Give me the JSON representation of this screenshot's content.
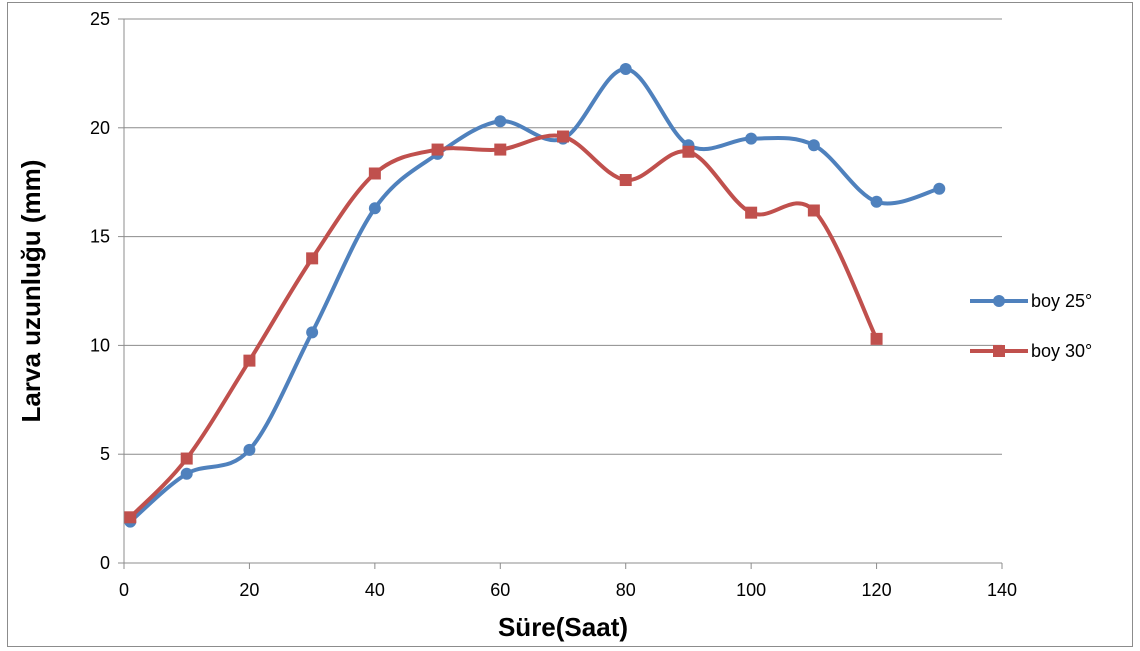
{
  "chart_data": {
    "type": "line",
    "title": "",
    "xlabel": "Süre(Saat)",
    "ylabel": "Larva uzunluğu (mm)",
    "xlim": [
      0,
      140
    ],
    "ylim": [
      0,
      25
    ],
    "x_ticks": [
      0,
      20,
      40,
      60,
      80,
      100,
      120,
      140
    ],
    "y_ticks": [
      0,
      5,
      10,
      15,
      20,
      25
    ],
    "x_tick_labels": [
      "0",
      "20",
      "40",
      "60",
      "80",
      "100",
      "120",
      "140"
    ],
    "y_tick_labels": [
      "0",
      "5",
      "10",
      "15",
      "20",
      "25"
    ],
    "grid": "horizontal",
    "smooth": true,
    "legend_position": "right",
    "series": [
      {
        "name": "boy 25°",
        "color": "#4f81bd",
        "marker": "circle",
        "points": [
          [
            1,
            1.9
          ],
          [
            10,
            4.1
          ],
          [
            20,
            5.2
          ],
          [
            30,
            10.6
          ],
          [
            40,
            16.3
          ],
          [
            50,
            18.8
          ],
          [
            60,
            20.3
          ],
          [
            70,
            19.5
          ],
          [
            80,
            22.7
          ],
          [
            90,
            19.2
          ],
          [
            100,
            19.5
          ],
          [
            110,
            19.2
          ],
          [
            120,
            16.6
          ],
          [
            130,
            17.2
          ]
        ]
      },
      {
        "name": "boy 30°",
        "color": "#c0504d",
        "marker": "square",
        "points": [
          [
            1,
            2.1
          ],
          [
            10,
            4.8
          ],
          [
            20,
            9.3
          ],
          [
            30,
            14.0
          ],
          [
            40,
            17.9
          ],
          [
            50,
            19.0
          ],
          [
            60,
            19.0
          ],
          [
            70,
            19.6
          ],
          [
            80,
            17.6
          ],
          [
            90,
            18.9
          ],
          [
            100,
            16.1
          ],
          [
            110,
            16.2
          ],
          [
            120,
            10.3
          ]
        ]
      }
    ]
  }
}
